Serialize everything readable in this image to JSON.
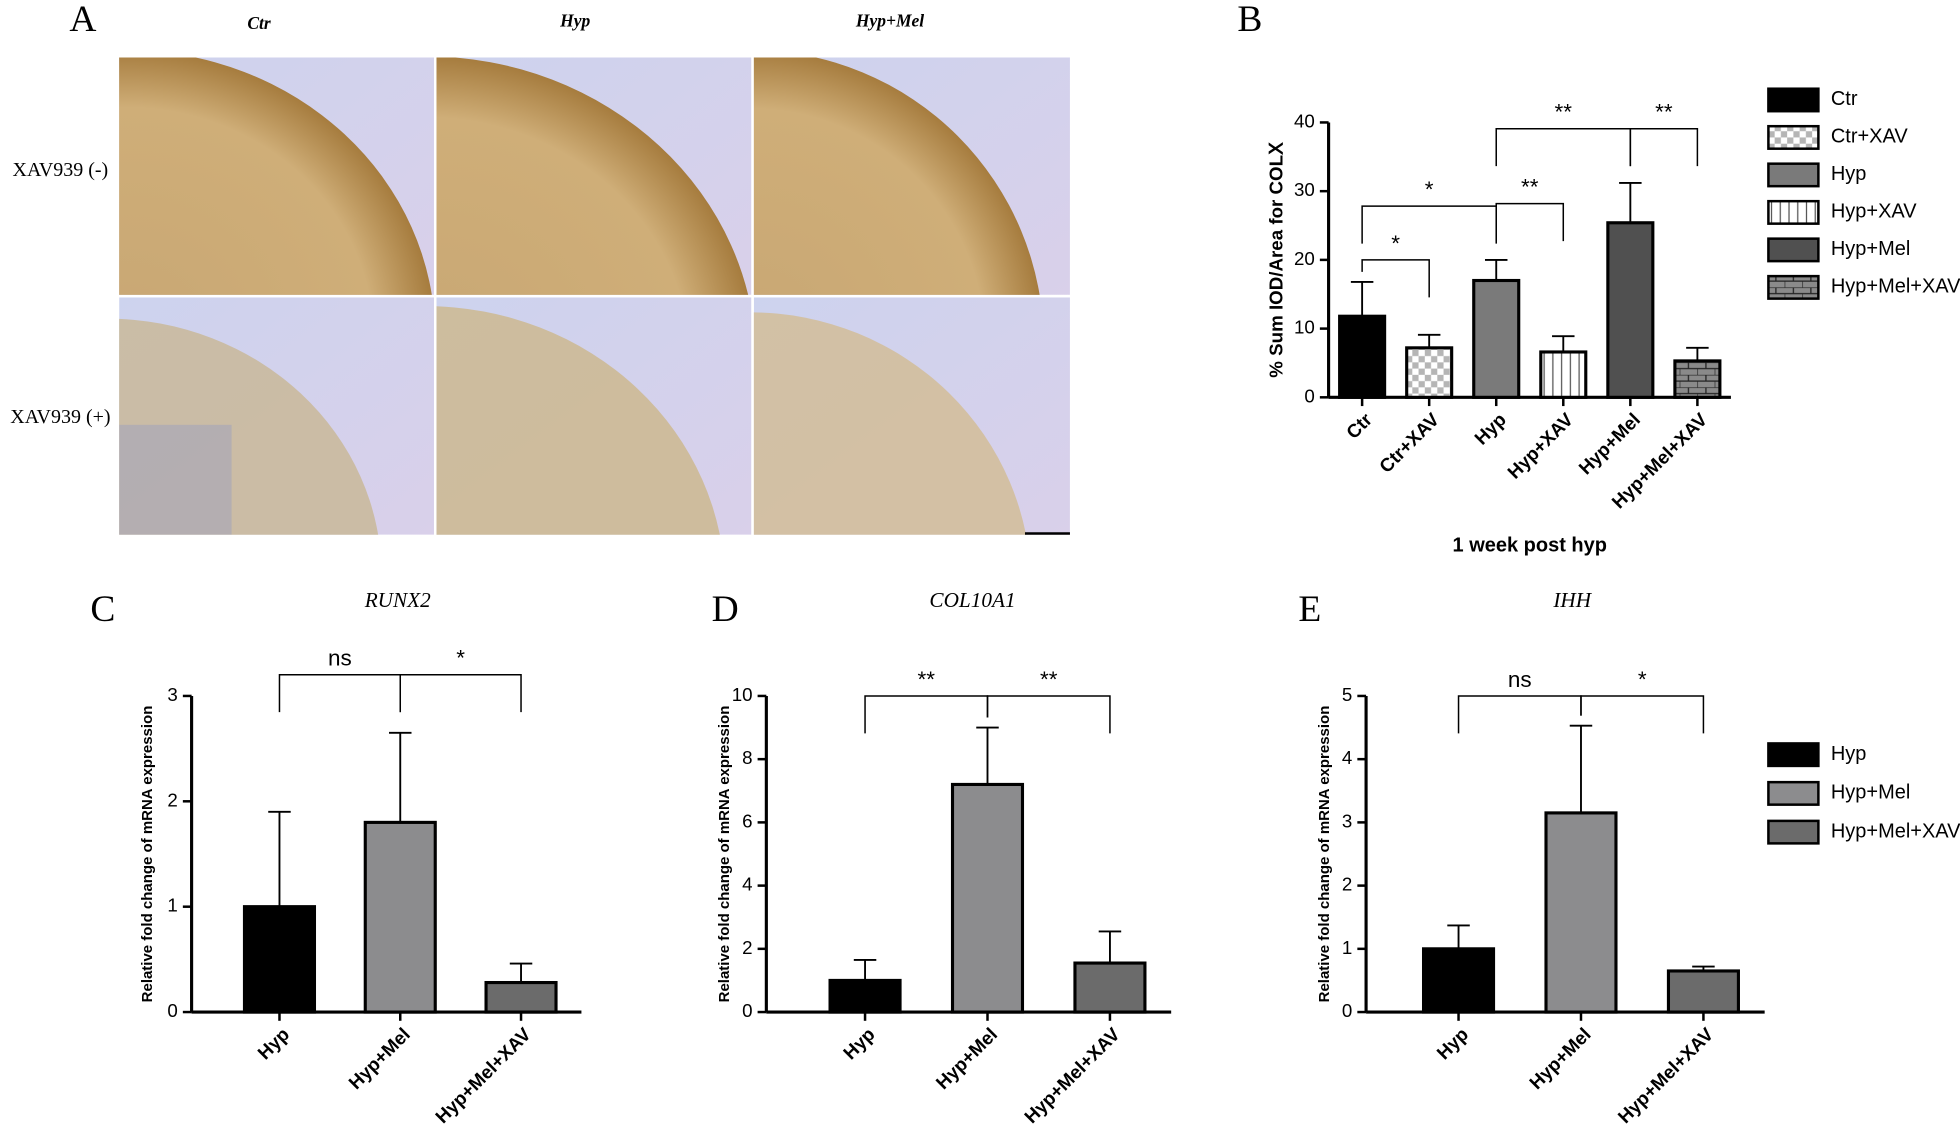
{
  "image_panel": {
    "panel": "A",
    "columns": [
      "Ctr",
      "Hyp",
      "Hyp+Mel"
    ],
    "rows": [
      "XAV939 (-)",
      "XAV939 (+)"
    ]
  },
  "chart_data": [
    {
      "type": "bar",
      "panel": "B",
      "ylabel": "% Sum IOD/Area for COLⅩ",
      "xlabel": "1 week post hyp",
      "categories": [
        "Ctr",
        "Ctr+XAV",
        "Hyp",
        "Hyp+XAV",
        "Hyp+Mel",
        "Hyp+Mel+XAV"
      ],
      "values": [
        11.8,
        7.2,
        17,
        6.6,
        25.4,
        5.3
      ],
      "errors": [
        5,
        1.9,
        3,
        2.3,
        5.8,
        1.9
      ],
      "colors": [
        "#000000",
        "#ffffff",
        "#7a7a7a",
        "#ffffff",
        "#505050",
        "#8a8a8a"
      ],
      "patterns": [
        "solid",
        "checker",
        "solid",
        "vertical-lines",
        "solid",
        "brick"
      ],
      "ylim": [
        0,
        40
      ],
      "yticks": [
        0,
        10,
        20,
        30,
        40
      ],
      "legend": "right",
      "annotations": [
        {
          "label": "*",
          "pair": [
            0,
            1
          ]
        },
        {
          "label": "*",
          "pair": [
            0,
            2
          ]
        },
        {
          "label": "**",
          "pair": [
            2,
            3
          ]
        },
        {
          "label": "**",
          "pair": [
            2,
            4
          ]
        },
        {
          "label": "**",
          "pair": [
            4,
            5
          ]
        }
      ]
    },
    {
      "type": "bar",
      "panel": "C",
      "title": "RUNX2",
      "ylabel": "Relative fold change of mRNA expression",
      "categories": [
        "Hyp",
        "Hyp+Mel",
        "Hyp+Mel+XAV"
      ],
      "values": [
        1.0,
        1.8,
        0.28
      ],
      "errors": [
        0.9,
        0.85,
        0.18
      ],
      "colors": [
        "#000000",
        "#8c8c8e",
        "#6b6b6b"
      ],
      "ylim": [
        0,
        3
      ],
      "yticks": [
        0,
        1,
        2,
        3
      ],
      "annotations": [
        {
          "label": "ns",
          "pair": [
            0,
            1
          ]
        },
        {
          "label": "*",
          "pair": [
            1,
            2
          ]
        }
      ]
    },
    {
      "type": "bar",
      "panel": "D",
      "title": "COL10A1",
      "ylabel": "Relative fold change of mRNA expression",
      "categories": [
        "Hyp",
        "Hyp+Mel",
        "Hyp+Mel+XAV"
      ],
      "values": [
        1.0,
        7.2,
        1.55
      ],
      "errors": [
        0.65,
        1.8,
        1.0
      ],
      "colors": [
        "#000000",
        "#8c8c8e",
        "#6b6b6b"
      ],
      "ylim": [
        0,
        10
      ],
      "yticks": [
        0,
        2,
        4,
        6,
        8,
        10
      ],
      "annotations": [
        {
          "label": "**",
          "pair": [
            0,
            1
          ]
        },
        {
          "label": "**",
          "pair": [
            1,
            2
          ]
        }
      ]
    },
    {
      "type": "bar",
      "panel": "E",
      "title": "IHH",
      "ylabel": "Relative fold change of mRNA expression",
      "categories": [
        "Hyp",
        "Hyp+Mel",
        "Hyp+Mel+XAV"
      ],
      "values": [
        1.0,
        3.15,
        0.65
      ],
      "errors": [
        0.37,
        1.38,
        0.07
      ],
      "colors": [
        "#000000",
        "#8c8c8e",
        "#6b6b6b"
      ],
      "ylim": [
        0,
        5
      ],
      "yticks": [
        0,
        1,
        2,
        3,
        4,
        5
      ],
      "legend": "right",
      "annotations": [
        {
          "label": "ns",
          "pair": [
            0,
            1
          ]
        },
        {
          "label": "*",
          "pair": [
            1,
            2
          ]
        }
      ]
    }
  ]
}
